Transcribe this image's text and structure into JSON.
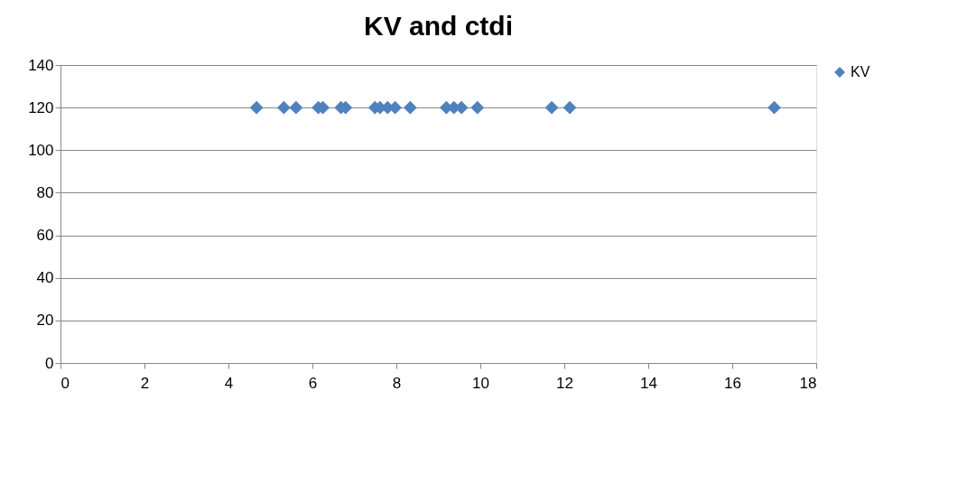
{
  "chart_data": {
    "type": "scatter",
    "title": "KV and ctdi",
    "x": [
      4.67,
      5.32,
      5.61,
      6.14,
      6.25,
      6.68,
      6.79,
      7.49,
      7.61,
      7.79,
      7.97,
      8.33,
      9.19,
      9.37,
      9.55,
      9.93,
      11.7,
      12.13,
      17.0
    ],
    "series": [
      {
        "name": "KV",
        "color": "#4f81bd",
        "values": [
          120,
          120,
          120,
          120,
          120,
          120,
          120,
          120,
          120,
          120,
          120,
          120,
          120,
          120,
          120,
          120,
          120,
          120,
          120
        ]
      }
    ],
    "xlim": [
      0,
      18
    ],
    "xticks": [
      0,
      2,
      4,
      6,
      8,
      10,
      12,
      14,
      16,
      18
    ],
    "ylim": [
      0,
      140
    ],
    "yticks": [
      0,
      20,
      40,
      60,
      80,
      100,
      120,
      140
    ],
    "grid": "y",
    "legend": "right",
    "marker": "diamond"
  }
}
